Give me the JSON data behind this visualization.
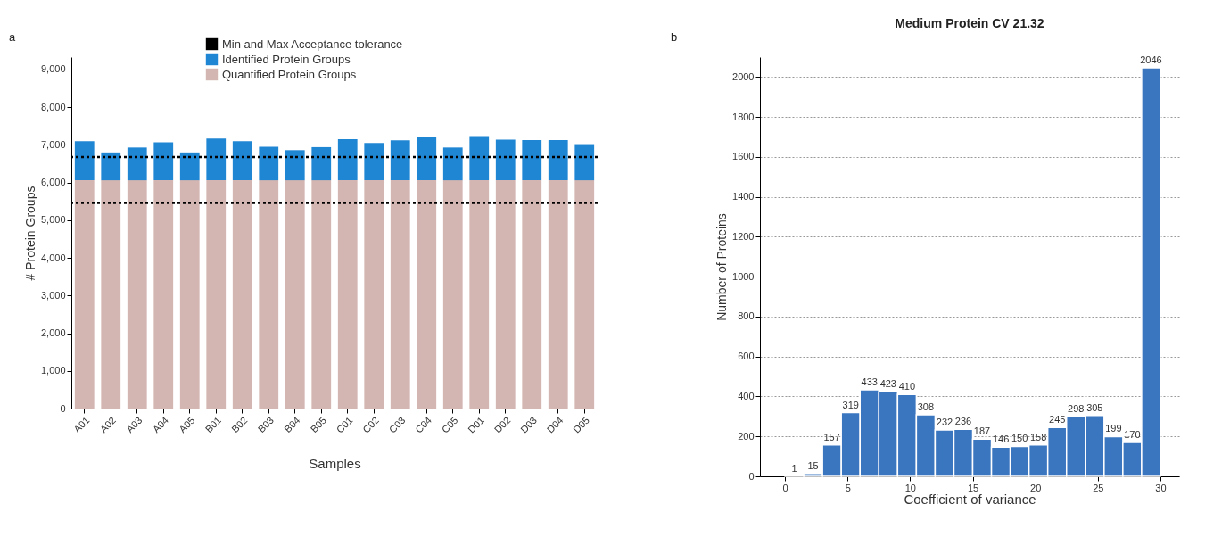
{
  "chart_data": [
    {
      "type": "bar",
      "stacked": true,
      "xlabel": "Samples",
      "ylabel": "# Protein Groups",
      "annotations": [
        "a"
      ],
      "categories": [
        "A01",
        "A02",
        "A03",
        "A04",
        "A05",
        "B01",
        "B02",
        "B03",
        "B04",
        "B05",
        "C01",
        "C02",
        "C03",
        "C04",
        "C05",
        "D01",
        "D02",
        "D03",
        "D04",
        "D05"
      ],
      "series": [
        {
          "name": "Quantified Protein Groups",
          "color": "#d3b5b1",
          "values": [
            6060,
            6060,
            6060,
            6060,
            6060,
            6060,
            6060,
            6060,
            6060,
            6060,
            6060,
            6060,
            6060,
            6060,
            6060,
            6060,
            6060,
            6060,
            6060,
            6060
          ]
        },
        {
          "name": "Identified Protein Groups",
          "color": "#1f86d4",
          "values": [
            1040,
            740,
            870,
            1010,
            740,
            1110,
            1040,
            890,
            800,
            880,
            1090,
            990,
            1060,
            1140,
            870,
            1150,
            1080,
            1070,
            1070,
            960
          ]
        }
      ],
      "ylim": [
        0,
        9330
      ],
      "yticks": [
        {
          "value": 0,
          "label": "0"
        },
        {
          "value": 1000,
          "label": "1,000"
        },
        {
          "value": 2000,
          "label": "2,000"
        },
        {
          "value": 3000,
          "label": "3,000"
        },
        {
          "value": 4000,
          "label": "4,000"
        },
        {
          "value": 5000,
          "label": "5,000"
        },
        {
          "value": 6000,
          "label": "6,000"
        },
        {
          "value": 7000,
          "label": "7,000"
        },
        {
          "value": 8000,
          "label": "8,000"
        },
        {
          "value": 9000,
          "label": "9,000"
        }
      ],
      "ref_lines": [
        {
          "axis": "y",
          "value": 6680,
          "label": "Min and Max Acceptance tolerance",
          "color": "#000000",
          "line_style": "dotted"
        },
        {
          "axis": "y",
          "value": 5460,
          "color": "#000000",
          "line_style": "dotted"
        }
      ],
      "grid": false,
      "legend": "top"
    },
    {
      "type": "histogram",
      "title": "Medium Protein CV 21.32",
      "xlabel": "Coefficient of variance",
      "ylabel": "Number of Proteins",
      "annotations": [
        "b"
      ],
      "bins": [
        0,
        1.5,
        3,
        4.5,
        6,
        7.5,
        9,
        10.5,
        12,
        13.5,
        15,
        16.5,
        18,
        19.5,
        21,
        22.5,
        24,
        25.5,
        27,
        28.5,
        30
      ],
      "values": [
        1,
        15,
        157,
        319,
        433,
        423,
        410,
        308,
        232,
        236,
        187,
        146,
        150,
        158,
        245,
        298,
        305,
        199,
        170,
        2046
      ],
      "color": "#3a75bf",
      "data_labels": true,
      "xlim": [
        -2,
        31.5
      ],
      "xticks": [
        0,
        5,
        10,
        15,
        20,
        25,
        30
      ],
      "ylim": [
        0,
        2100
      ],
      "yticks": [
        0,
        200,
        400,
        600,
        800,
        1000,
        1200,
        1400,
        1600,
        1800,
        2000
      ],
      "grid": "y"
    }
  ]
}
